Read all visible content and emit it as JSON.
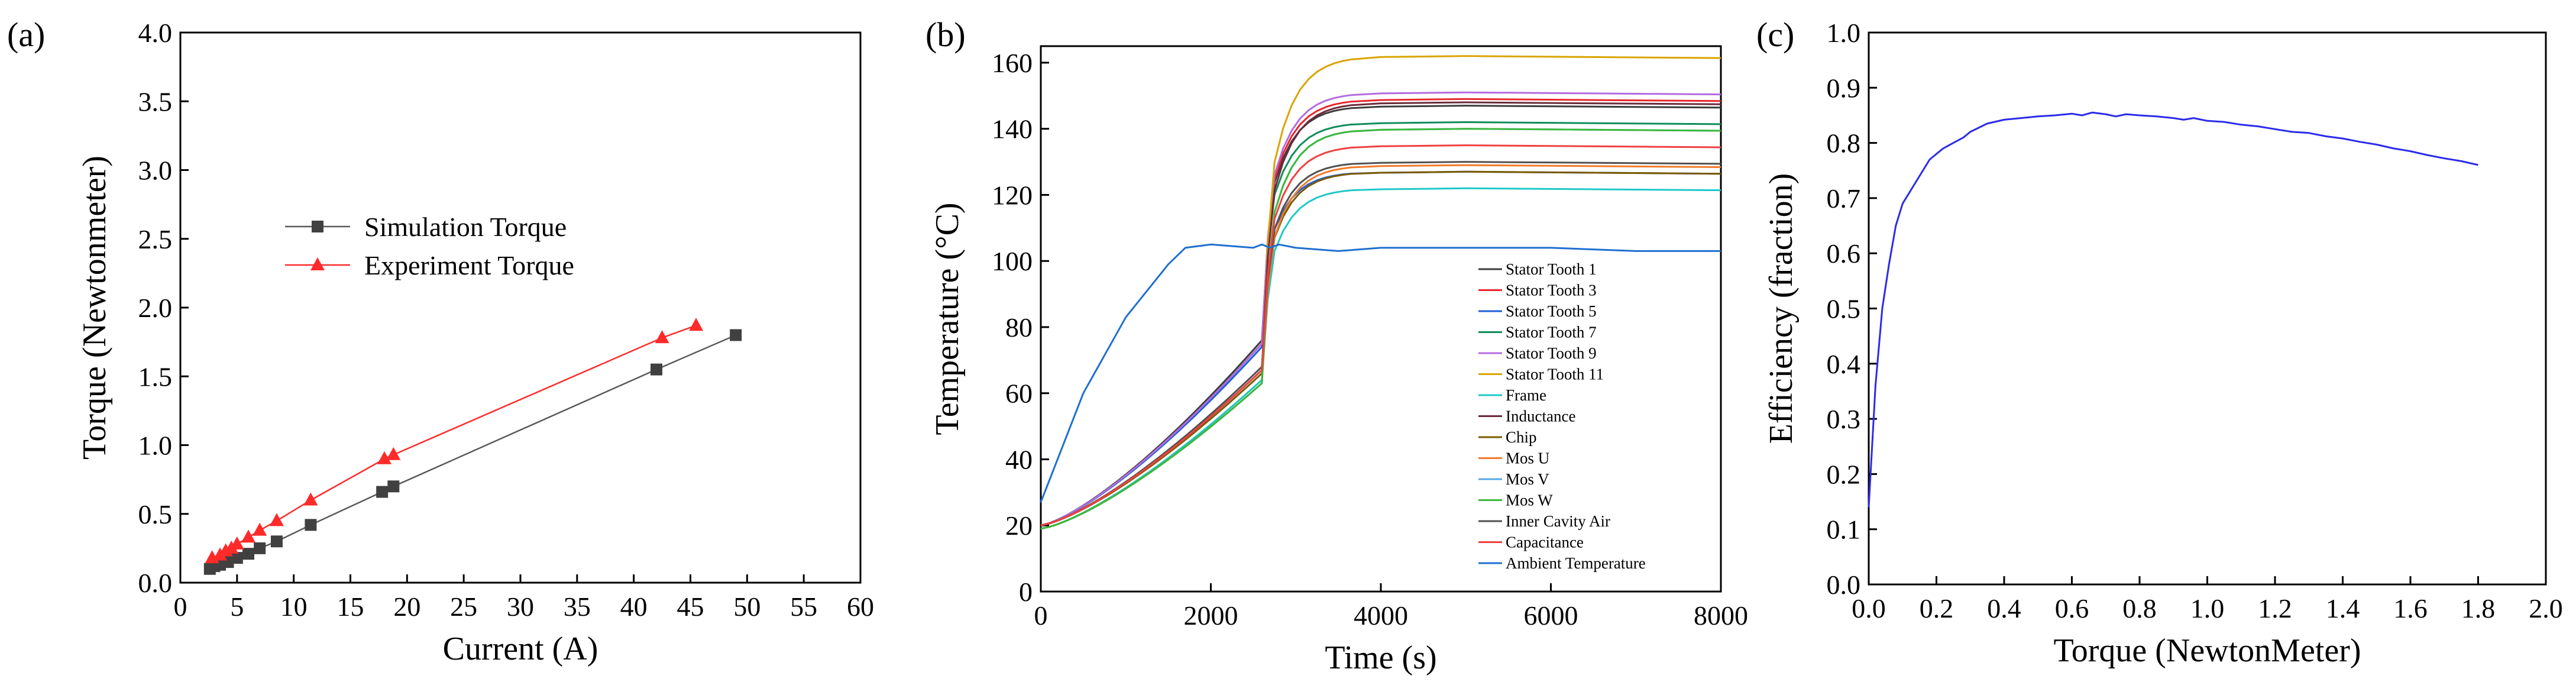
{
  "panel_labels": [
    "(a)",
    "(b)",
    "(c)"
  ],
  "chart_data": [
    {
      "type": "line",
      "panel": "(a)",
      "title": "",
      "xlabel": "Current (A)",
      "ylabel": "Torque (Newtonmeter)",
      "xlim": [
        0,
        60
      ],
      "ylim": [
        0,
        4.0
      ],
      "xticks": [
        0,
        5,
        10,
        15,
        20,
        25,
        30,
        35,
        40,
        45,
        50,
        55,
        60
      ],
      "yticks": [
        0.0,
        0.5,
        1.0,
        1.5,
        2.0,
        2.5,
        3.0,
        3.5,
        4.0
      ],
      "legend_position": "center-left",
      "series": [
        {
          "name": "Simulation Torque",
          "color": "#595959",
          "marker": "square",
          "x": [
            2.6,
            3.0,
            3.5,
            4.2,
            5.0,
            6.0,
            7.0,
            8.5,
            11.5,
            17.8,
            18.8,
            42.0,
            49.0
          ],
          "y": [
            0.1,
            0.12,
            0.13,
            0.15,
            0.18,
            0.21,
            0.25,
            0.3,
            0.42,
            0.66,
            0.7,
            1.55,
            1.8
          ]
        },
        {
          "name": "Experiment Torque",
          "color": "#ff2a2a",
          "marker": "triangle",
          "x": [
            2.8,
            3.5,
            4.0,
            4.5,
            5.0,
            6.0,
            7.0,
            8.5,
            11.5,
            18.0,
            18.8,
            42.5,
            45.5
          ],
          "y": [
            0.18,
            0.2,
            0.23,
            0.25,
            0.28,
            0.33,
            0.38,
            0.45,
            0.6,
            0.9,
            0.93,
            1.78,
            1.87
          ]
        }
      ]
    },
    {
      "type": "line",
      "panel": "(b)",
      "title": "",
      "xlabel": "Time (s)",
      "ylabel": "Temperature (°C)",
      "xlim": [
        0,
        8000
      ],
      "ylim": [
        0,
        165
      ],
      "xticks": [
        0,
        2000,
        4000,
        6000,
        8000
      ],
      "yticks": [
        0,
        20,
        40,
        60,
        80,
        100,
        120,
        140,
        160
      ],
      "legend_position": "bottom-right",
      "series": [
        {
          "name": "Stator Tooth 1",
          "color": "#3c3c3c",
          "start": 20,
          "at_step": 76,
          "final": 147
        },
        {
          "name": "Stator Tooth 3",
          "color": "#e8262c",
          "start": 20,
          "at_step": 75,
          "final": 149
        },
        {
          "name": "Stator Tooth 5",
          "color": "#1f5fd9",
          "start": 20,
          "at_step": 74,
          "final": 127
        },
        {
          "name": "Stator Tooth 7",
          "color": "#0f8c5a",
          "start": 20,
          "at_step": 75,
          "final": 142
        },
        {
          "name": "Stator Tooth 9",
          "color": "#b36be0",
          "start": 20,
          "at_step": 75,
          "final": 151
        },
        {
          "name": "Stator Tooth 11",
          "color": "#d9a400",
          "start": 19,
          "at_step": 64,
          "final": 162
        },
        {
          "name": "Frame",
          "color": "#1fc8c8",
          "start": 19,
          "at_step": 64,
          "final": 122
        },
        {
          "name": "Inductance",
          "color": "#6b2a3a",
          "start": 20,
          "at_step": 67,
          "final": 148
        },
        {
          "name": "Chip",
          "color": "#7a5a00",
          "start": 20,
          "at_step": 66,
          "final": 127
        },
        {
          "name": "Mos U",
          "color": "#f07a2a",
          "start": 19,
          "at_step": 63,
          "final": 129
        },
        {
          "name": "Mos V",
          "color": "#5aa8e8",
          "start": 19,
          "at_step": 63,
          "final": 140
        },
        {
          "name": "Mos W",
          "color": "#3cb83c",
          "start": 19,
          "at_step": 63,
          "final": 140
        },
        {
          "name": "Inner Cavity Air",
          "color": "#505050",
          "start": 20,
          "at_step": 68,
          "final": 130
        },
        {
          "name": "Capacitance",
          "color": "#f04040",
          "start": 20,
          "at_step": 67,
          "final": 135
        },
        {
          "name": "Ambient Temperature",
          "color": "#1f6fd0",
          "x": [
            0,
            500,
            1000,
            1500,
            1700,
            2000,
            2500,
            2600,
            2700,
            2800,
            3000,
            3500,
            4000,
            5000,
            6000,
            7000,
            8000
          ],
          "y": [
            27,
            60,
            83,
            99,
            104,
            105,
            104,
            105,
            104,
            105,
            104,
            103,
            104,
            104,
            104,
            103,
            103
          ]
        }
      ],
      "step_time": 2600,
      "settle_time": 3700
    },
    {
      "type": "line",
      "panel": "(c)",
      "title": "",
      "xlabel": "Torque (NewtonMeter)",
      "ylabel": "Efficiency (fraction)",
      "xlim": [
        0.0,
        2.0
      ],
      "ylim": [
        0.0,
        1.0
      ],
      "xticks": [
        0.0,
        0.2,
        0.4,
        0.6,
        0.8,
        1.0,
        1.2,
        1.4,
        1.6,
        1.8,
        2.0
      ],
      "yticks": [
        0.0,
        0.1,
        0.2,
        0.3,
        0.4,
        0.5,
        0.6,
        0.7,
        0.8,
        0.9,
        1.0
      ],
      "legend_position": "none",
      "series": [
        {
          "name": "Efficiency",
          "color": "#2b2bea",
          "x": [
            0.0,
            0.01,
            0.02,
            0.04,
            0.06,
            0.08,
            0.1,
            0.14,
            0.18,
            0.22,
            0.25,
            0.28,
            0.3,
            0.35,
            0.4,
            0.45,
            0.5,
            0.55,
            0.6,
            0.63,
            0.66,
            0.7,
            0.73,
            0.76,
            0.8,
            0.85,
            0.9,
            0.93,
            0.96,
            1.0,
            1.05,
            1.1,
            1.15,
            1.2,
            1.25,
            1.3,
            1.35,
            1.4,
            1.45,
            1.5,
            1.55,
            1.6,
            1.65,
            1.7,
            1.75,
            1.8
          ],
          "y": [
            0.14,
            0.25,
            0.36,
            0.5,
            0.58,
            0.65,
            0.69,
            0.73,
            0.77,
            0.79,
            0.8,
            0.81,
            0.82,
            0.835,
            0.842,
            0.845,
            0.848,
            0.85,
            0.853,
            0.85,
            0.855,
            0.852,
            0.848,
            0.852,
            0.85,
            0.848,
            0.845,
            0.842,
            0.845,
            0.84,
            0.838,
            0.833,
            0.83,
            0.825,
            0.82,
            0.818,
            0.812,
            0.808,
            0.802,
            0.797,
            0.79,
            0.785,
            0.778,
            0.772,
            0.767,
            0.76
          ]
        }
      ]
    }
  ]
}
